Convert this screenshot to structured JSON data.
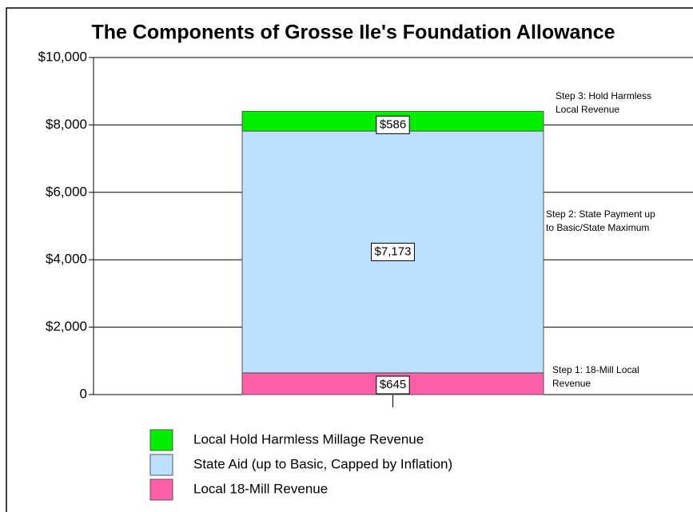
{
  "chart_data": {
    "type": "stacked_bar",
    "title": "The Components of Grosse Ile's Foundation Allowance",
    "categories": [
      null
    ],
    "series": [
      {
        "name": "Local 18-Mill Revenue",
        "color": "#ff5fa8",
        "values": [
          645
        ],
        "value_labels": [
          "$645"
        ]
      },
      {
        "name": "State Aid (up to Basic, Capped by Inflation)",
        "color": "#bde0ff",
        "values": [
          7173
        ],
        "value_labels": [
          "$7,173"
        ]
      },
      {
        "name": "Local Hold Harmless Millage Revenue",
        "color": "#00ee00",
        "values": [
          586
        ],
        "value_labels": [
          "$586"
        ]
      }
    ],
    "annotations": [
      [
        "Step 1: 18-Mill Local",
        "Revenue"
      ],
      [
        "Step 2: State Payment up",
        "to Basic/State Maximum"
      ],
      [
        "Step 3: Hold Harmless",
        "Local Revenue"
      ]
    ],
    "ylim": [
      0,
      10000
    ],
    "yticks": [
      0,
      {
        "value": 2000,
        "label": "$2,000"
      },
      {
        "value": 4000,
        "label": "$4,000"
      },
      {
        "value": 6000,
        "label": "$6,000"
      },
      {
        "value": 8000,
        "label": "$8,000"
      },
      {
        "value": 10000,
        "label": "$10,000"
      }
    ],
    "grid": true
  }
}
